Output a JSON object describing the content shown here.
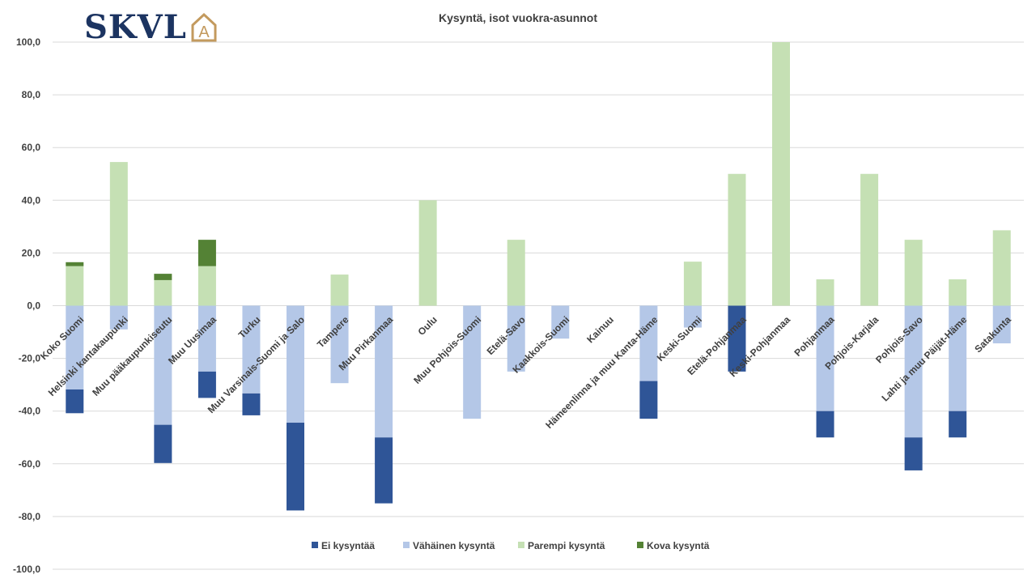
{
  "logo": {
    "text": "SKVL",
    "mark_letter": "A",
    "colors": {
      "text": "#1c3461",
      "mark": "#c39a5e"
    }
  },
  "chart_data": {
    "type": "bar",
    "stacked": true,
    "title": "Kysyntä, isot vuokra-asunnot",
    "xlabel": "",
    "ylabel": "",
    "ylim": [
      -100,
      100
    ],
    "yticks": [
      100,
      80,
      60,
      40,
      20,
      0,
      -20,
      -40,
      -60,
      -80,
      -100
    ],
    "ytick_labels": [
      "100,0",
      "80,0",
      "60,0",
      "40,0",
      "20,0",
      "0,0",
      "-20,0",
      "-40,0",
      "-60,0",
      "-80,0",
      "-100,0"
    ],
    "grid": true,
    "legend_position": "bottom",
    "categories": [
      "Koko Suomi",
      "Helsinki kantakaupunki",
      "Muu pääkaupunkiseutu",
      "Muu Uusimaa",
      "Turku",
      "Muu Varsinais-Suomi ja Salo",
      "Tampere",
      "Muu Pirkanmaa",
      "Oulu",
      "Muu Pohjois-Suomi",
      "Etelä-Savo",
      "Kaakkois-Suomi",
      "Kainuu",
      "Hämeenlinna ja muu Kanta-Häme",
      "Keski-Suomi",
      "Etelä-Pohjanmaa",
      "Keski-Pohjanmaa",
      "Pohjanmaa",
      "Pohjois-Karjala",
      "Pohjois-Savo",
      "Lahti ja muu Päijät-Häme",
      "Satakunta"
    ],
    "series": [
      {
        "name": "Ei kysyntää",
        "color": "#2f5597",
        "values": [
          -9,
          0,
          -14.5,
          -10,
          -8.3,
          -33.3,
          0,
          -25,
          0,
          0,
          0,
          0,
          0,
          -14.3,
          0,
          -25,
          0,
          -10,
          0,
          -12.5,
          -10,
          0
        ]
      },
      {
        "name": "Vähäinen kysyntä",
        "color": "#b4c7e7",
        "values": [
          -31.8,
          -9,
          -45.2,
          -25,
          -33.3,
          -44.4,
          -29.4,
          -50,
          0,
          -42.9,
          -25,
          -12.5,
          0,
          -28.6,
          -8.3,
          0,
          0,
          -40,
          0,
          -50,
          -40,
          -14.3
        ]
      },
      {
        "name": "Parempi kysyntä",
        "color": "#c5e0b4",
        "values": [
          15,
          54.5,
          9.7,
          15,
          0,
          0,
          11.8,
          0,
          40,
          0,
          25,
          0,
          0,
          0,
          16.7,
          50,
          100,
          10,
          50,
          25,
          10,
          28.6
        ]
      },
      {
        "name": "Kova kysyntä",
        "color": "#548235",
        "values": [
          1.5,
          0,
          2.4,
          10,
          0,
          0,
          0,
          0,
          0,
          0,
          0,
          0,
          0,
          0,
          0,
          0,
          0,
          0,
          0,
          0,
          0,
          0
        ]
      }
    ]
  }
}
